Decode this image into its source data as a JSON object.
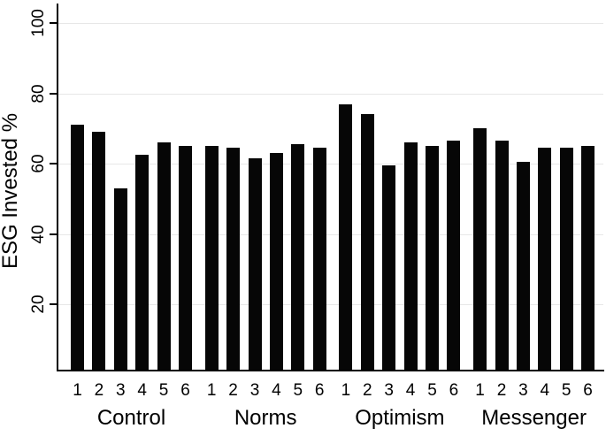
{
  "figure": {
    "background": "#ffffff",
    "bar_color": "#060606",
    "axis_color": "#000000",
    "gridline_color": "#e7e7e7",
    "text_color": "#000000"
  },
  "chart_data": {
    "type": "bar",
    "title": "",
    "xlabel": "",
    "ylabel": "ESG Invested %",
    "ylim": [
      0,
      104
    ],
    "yticks": [
      20,
      40,
      60,
      80,
      100
    ],
    "grid": true,
    "legend": false,
    "bar_labels": [
      "1",
      "2",
      "3",
      "4",
      "5",
      "6"
    ],
    "categories": [
      "Control",
      "Norms",
      "Optimism",
      "Messenger"
    ],
    "groups": [
      {
        "label": "Control",
        "values": [
          71,
          69,
          53,
          62.5,
          66,
          65
        ]
      },
      {
        "label": "Norms",
        "values": [
          65,
          64.5,
          61.5,
          63,
          65.5,
          64.5
        ]
      },
      {
        "label": "Optimism",
        "values": [
          77,
          74,
          59.5,
          66,
          65,
          66.5
        ]
      },
      {
        "label": "Messenger",
        "values": [
          70,
          66.5,
          60.5,
          64.5,
          64.5,
          65
        ]
      }
    ]
  }
}
